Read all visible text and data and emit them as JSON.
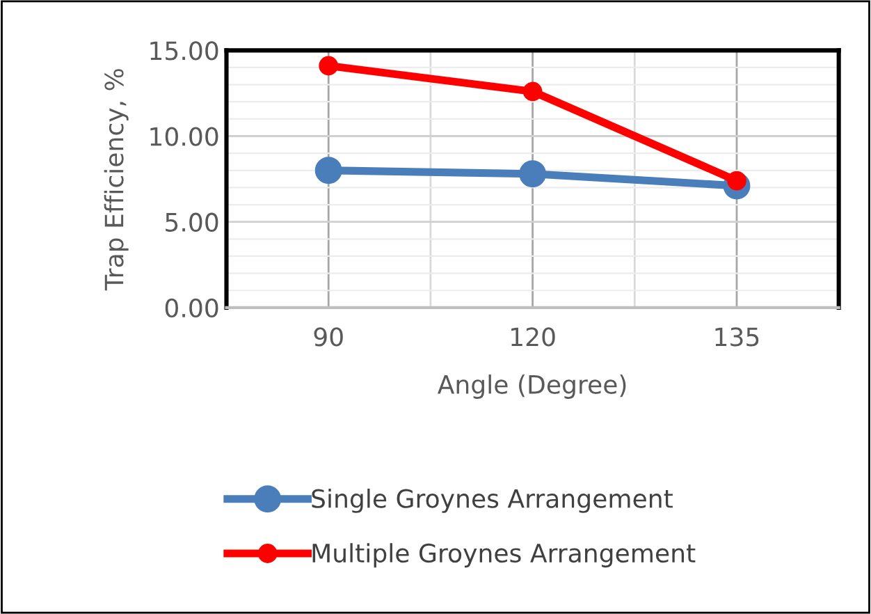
{
  "chart_data": {
    "type": "line",
    "xlabel": "Angle (Degree)",
    "ylabel": "Trap Efficiency, %",
    "categories": [
      "90",
      "120",
      "135"
    ],
    "series": [
      {
        "name": "Single Groynes Arrangement",
        "color": "#4a7ebb",
        "values": [
          8.0,
          7.8,
          7.1
        ]
      },
      {
        "name": "Multiple Groynes Arrangement",
        "color": "#ff0000",
        "values": [
          14.1,
          12.6,
          7.4
        ]
      }
    ],
    "ylim": [
      0,
      15
    ],
    "yticks": [
      {
        "value": 0,
        "label": "0.00"
      },
      {
        "value": 5,
        "label": "5.00"
      },
      {
        "value": 10,
        "label": "10.00"
      },
      {
        "value": 15,
        "label": "15.00"
      }
    ],
    "grid": true,
    "legend": "bottom",
    "marker": "circle",
    "line_style": "solid"
  }
}
